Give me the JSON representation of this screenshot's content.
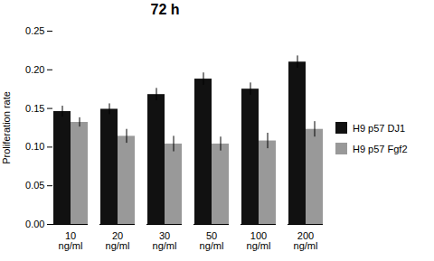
{
  "chart_data": {
    "type": "bar",
    "title": "72 h",
    "ylabel": "Proliferation rate",
    "categories": [
      "10\nng/ml",
      "20\nng/ml",
      "30\nng/ml",
      "50\nng/ml",
      "100\nng/ml",
      "200\nng/ml"
    ],
    "series": [
      {
        "name": "H9 p57 DJ1",
        "color": "#111111",
        "values": [
          0.146,
          0.149,
          0.168,
          0.188,
          0.175,
          0.21
        ],
        "errors": [
          0.007,
          0.007,
          0.008,
          0.008,
          0.008,
          0.008
        ]
      },
      {
        "name": "H9 p57 Fgf2",
        "color": "#999999",
        "values": [
          0.132,
          0.114,
          0.104,
          0.104,
          0.108,
          0.123
        ],
        "errors": [
          0.006,
          0.009,
          0.01,
          0.009,
          0.01,
          0.01
        ]
      }
    ],
    "ylim": [
      0,
      0.25
    ],
    "yticks": [
      {
        "value": 0,
        "label": "0.00"
      },
      {
        "value": 0.05,
        "label": "0.05"
      },
      {
        "value": 0.1,
        "label": "0.10"
      },
      {
        "value": 0.15,
        "label": "0.15"
      },
      {
        "value": 0.2,
        "label": "0.20"
      },
      {
        "value": 0.25,
        "label": "0.25"
      }
    ],
    "legend": "right",
    "grid": false
  }
}
